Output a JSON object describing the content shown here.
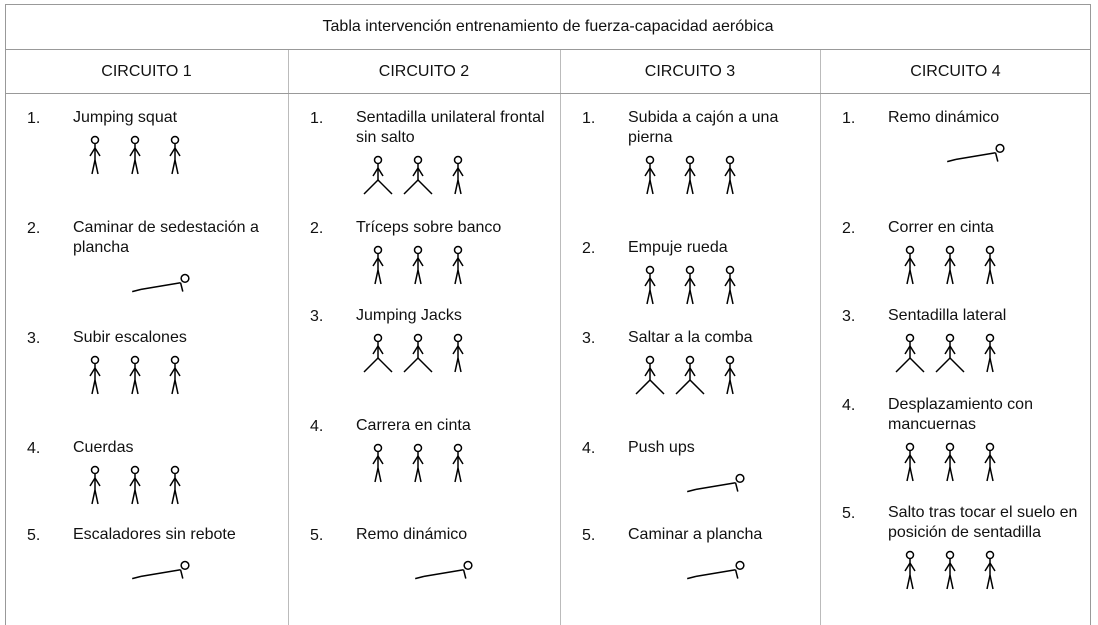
{
  "table": {
    "title": "Tabla intervención entrenamiento de fuerza-capacidad aeróbica",
    "columns": [
      {
        "header": "CIRCUITO 1",
        "items": [
          {
            "number": "1.",
            "label": "Jumping squat"
          },
          {
            "number": "2.",
            "label": "Caminar de sedestación a plancha"
          },
          {
            "number": "3.",
            "label": "Subir escalones"
          },
          {
            "number": "4.",
            "label": "Cuerdas"
          },
          {
            "number": "5.",
            "label": "Escaladores sin rebote"
          }
        ]
      },
      {
        "header": "CIRCUITO 2",
        "items": [
          {
            "number": "1.",
            "label": "Sentadilla unilateral frontal sin salto"
          },
          {
            "number": "2.",
            "label": "Tríceps sobre banco"
          },
          {
            "number": "3.",
            "label": "Jumping Jacks"
          },
          {
            "number": "4.",
            "label": "Carrera en cinta"
          },
          {
            "number": "5.",
            "label": "Remo dinámico"
          }
        ]
      },
      {
        "header": "CIRCUITO 3",
        "items": [
          {
            "number": "1.",
            "label": "Subida a cajón a una pierna"
          },
          {
            "number": "2.",
            "label": "Empuje rueda"
          },
          {
            "number": "3.",
            "label": "Saltar a la comba"
          },
          {
            "number": "4.",
            "label": "Push ups"
          },
          {
            "number": "5.",
            "label": "Caminar a plancha"
          }
        ]
      },
      {
        "header": "CIRCUITO 4",
        "items": [
          {
            "number": "1.",
            "label": "Remo dinámico"
          },
          {
            "number": "2.",
            "label": "Correr en cinta"
          },
          {
            "number": "3.",
            "label": "Sentadilla lateral"
          },
          {
            "number": "4.",
            "label": "Desplazamiento con mancuernas"
          },
          {
            "number": "5.",
            "label": "Salto tras tocar el suelo en posición de sentadilla"
          }
        ]
      }
    ]
  }
}
